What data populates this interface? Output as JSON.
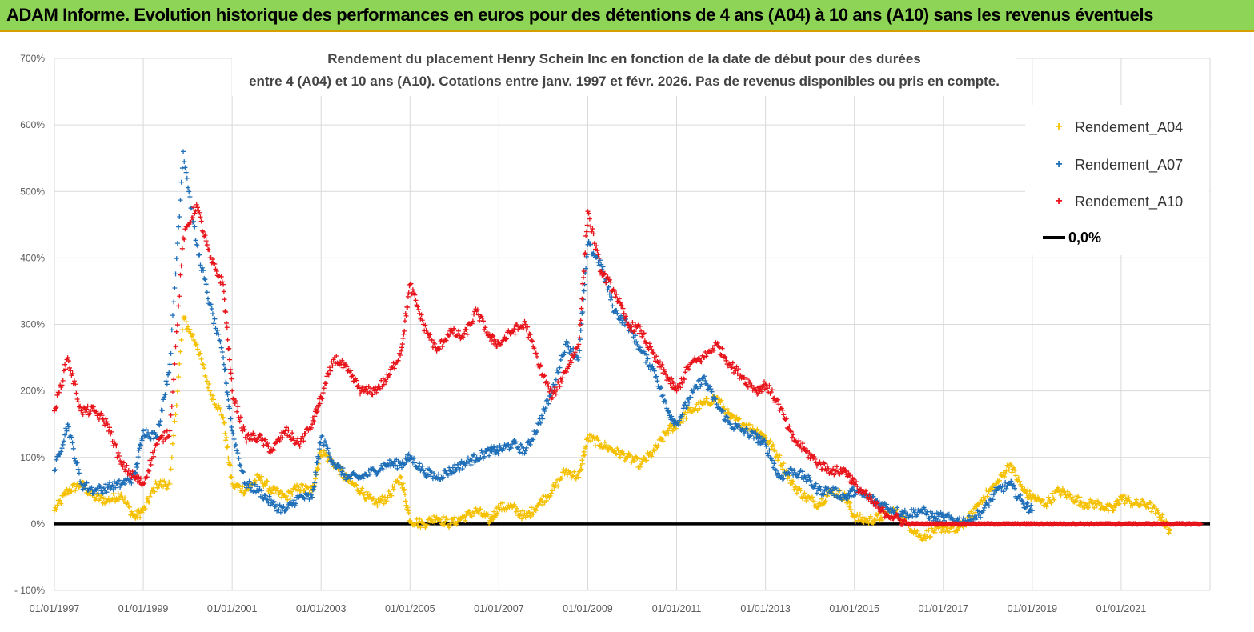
{
  "banner": {
    "title": "ADAM Informe. Evolution historique des performances en euros pour des détentions de 4 ans (A04) à 10 ans (A10) sans les revenus éventuels"
  },
  "chart_data": {
    "type": "scatter",
    "title_line1": "Rendement du placement Henry Schein Inc en fonction de la date de début pour des durées",
    "title_line2": "entre 4 (A04) et 10 ans (A10). Cotations entre janv. 1997 et févr. 2026. Pas de revenus disponibles ou pris en compte.",
    "xlabel": "",
    "ylabel": "",
    "x_range": [
      1997.0,
      2023.0
    ],
    "ylim": [
      -100,
      700
    ],
    "y_ticks": [
      -100,
      0,
      100,
      200,
      300,
      400,
      500,
      600,
      700
    ],
    "y_tick_labels": [
      "- 100%",
      "0%",
      "100%",
      "200%",
      "300%",
      "400%",
      "500%",
      "600%",
      "700%"
    ],
    "x_ticks": [
      1997,
      1999,
      2001,
      2003,
      2005,
      2007,
      2009,
      2011,
      2013,
      2015,
      2017,
      2019,
      2021
    ],
    "x_tick_labels": [
      "01/01/1997",
      "01/01/1999",
      "01/01/2001",
      "01/01/2003",
      "01/01/2005",
      "01/01/2007",
      "01/01/2009",
      "01/01/2011",
      "01/01/2013",
      "01/01/2015",
      "01/01/2017",
      "01/01/2019",
      "01/01/2021"
    ],
    "grid": true,
    "legend_position": "top-right",
    "colors": {
      "A04": "#f5c000",
      "A07": "#1f6fb8",
      "A10": "#e8141b",
      "zero": "#000000",
      "grid": "#d9d9d9",
      "axis_text": "#595959"
    },
    "series": [
      {
        "name": "Rendement_A04",
        "key": "A04",
        "marker": "+",
        "x": [
          1997.0,
          1997.3,
          1997.6,
          1997.9,
          1998.2,
          1998.5,
          1998.8,
          1999.0,
          1999.3,
          1999.6,
          1999.9,
          2000.2,
          2000.5,
          2000.8,
          2001.0,
          2001.3,
          2001.6,
          2001.9,
          2002.2,
          2002.5,
          2002.8,
          2003.0,
          2003.3,
          2003.6,
          2003.9,
          2004.2,
          2004.5,
          2004.8,
          2005.0,
          2005.3,
          2005.6,
          2005.9,
          2006.2,
          2006.5,
          2006.8,
          2007.0,
          2007.3,
          2007.6,
          2007.9,
          2008.2,
          2008.5,
          2008.8,
          2009.0,
          2009.3,
          2009.6,
          2009.9,
          2010.2,
          2010.5,
          2010.8,
          2011.0,
          2011.3,
          2011.6,
          2011.9,
          2012.2,
          2012.5,
          2012.8,
          2013.0,
          2013.3,
          2013.6,
          2013.9,
          2014.2,
          2014.5,
          2014.8,
          2015.0,
          2015.3,
          2015.6,
          2015.9,
          2016.2,
          2016.5,
          2016.8,
          2017.0,
          2017.3,
          2017.6,
          2017.9,
          2018.2,
          2018.5,
          2018.8,
          2019.0,
          2019.3,
          2019.6,
          2019.9,
          2020.2,
          2020.5,
          2020.8,
          2021.0,
          2021.3,
          2021.6,
          2021.9,
          2022.1
        ],
        "values": [
          20,
          50,
          60,
          40,
          35,
          45,
          10,
          20,
          60,
          60,
          310,
          270,
          200,
          160,
          60,
          50,
          70,
          50,
          40,
          55,
          50,
          110,
          90,
          65,
          50,
          30,
          40,
          70,
          5,
          0,
          10,
          0,
          10,
          20,
          5,
          25,
          25,
          10,
          30,
          50,
          80,
          70,
          130,
          120,
          110,
          100,
          90,
          110,
          140,
          150,
          170,
          180,
          190,
          160,
          150,
          140,
          130,
          100,
          60,
          40,
          30,
          50,
          40,
          10,
          5,
          10,
          20,
          0,
          -20,
          -10,
          -5,
          -10,
          10,
          40,
          60,
          90,
          50,
          40,
          30,
          50,
          40,
          30,
          30,
          20,
          40,
          30,
          30,
          10,
          -10
        ]
      },
      {
        "name": "Rendement_A07",
        "key": "A07",
        "marker": "+",
        "x": [
          1997.0,
          1997.3,
          1997.6,
          1997.9,
          1998.2,
          1998.5,
          1998.8,
          1999.0,
          1999.3,
          1999.6,
          1999.9,
          2000.2,
          2000.5,
          2000.8,
          2001.0,
          2001.3,
          2001.6,
          2001.9,
          2002.2,
          2002.5,
          2002.8,
          2003.0,
          2003.3,
          2003.6,
          2003.9,
          2004.2,
          2004.5,
          2004.8,
          2005.0,
          2005.3,
          2005.6,
          2005.9,
          2006.2,
          2006.5,
          2006.8,
          2007.0,
          2007.3,
          2007.6,
          2007.9,
          2008.2,
          2008.5,
          2008.8,
          2009.0,
          2009.3,
          2009.6,
          2009.9,
          2010.2,
          2010.5,
          2010.8,
          2011.0,
          2011.3,
          2011.6,
          2011.9,
          2012.2,
          2012.5,
          2012.8,
          2013.0,
          2013.3,
          2013.6,
          2013.9,
          2014.2,
          2014.5,
          2014.8,
          2015.0,
          2015.3,
          2015.6,
          2015.9,
          2016.2,
          2016.5,
          2016.8,
          2017.0,
          2017.3,
          2017.6,
          2017.9,
          2018.2,
          2018.5,
          2018.8,
          2019.0
        ],
        "values": [
          80,
          150,
          60,
          50,
          55,
          60,
          70,
          140,
          130,
          240,
          560,
          420,
          330,
          250,
          140,
          60,
          50,
          30,
          20,
          40,
          40,
          130,
          90,
          70,
          70,
          80,
          90,
          90,
          100,
          80,
          70,
          80,
          90,
          100,
          110,
          110,
          120,
          110,
          150,
          200,
          270,
          250,
          420,
          390,
          320,
          300,
          260,
          230,
          170,
          150,
          190,
          220,
          180,
          150,
          140,
          130,
          120,
          70,
          80,
          70,
          50,
          50,
          40,
          50,
          40,
          30,
          20,
          15,
          20,
          10,
          10,
          5,
          5,
          20,
          50,
          60,
          30,
          20
        ]
      },
      {
        "name": "Rendement_A10",
        "key": "A10",
        "marker": "+",
        "x": [
          1997.0,
          1997.3,
          1997.6,
          1997.9,
          1998.2,
          1998.5,
          1998.8,
          1999.0,
          1999.3,
          1999.6,
          1999.9,
          2000.2,
          2000.5,
          2000.8,
          2001.0,
          2001.3,
          2001.6,
          2001.9,
          2002.2,
          2002.5,
          2002.8,
          2003.0,
          2003.3,
          2003.6,
          2003.9,
          2004.2,
          2004.5,
          2004.8,
          2005.0,
          2005.3,
          2005.6,
          2005.9,
          2006.2,
          2006.5,
          2006.8,
          2007.0,
          2007.3,
          2007.6,
          2007.9,
          2008.2,
          2008.5,
          2008.8,
          2009.0,
          2009.3,
          2009.6,
          2009.9,
          2010.2,
          2010.5,
          2010.8,
          2011.0,
          2011.3,
          2011.6,
          2011.9,
          2012.2,
          2012.5,
          2012.8,
          2013.0,
          2013.3,
          2013.6,
          2013.9,
          2014.2,
          2014.5,
          2014.8,
          2015.0,
          2015.3,
          2015.6,
          2015.9,
          2016.2,
          2016.5,
          2016.8,
          2017.0,
          2017.3,
          2017.6,
          2017.9,
          2018.2,
          2018.5,
          2018.8,
          2019.0,
          2019.3,
          2019.6,
          2019.9,
          2020.2,
          2020.5,
          2020.8,
          2021.0,
          2021.3,
          2021.6,
          2021.9,
          2022.2,
          2022.5,
          2022.8
        ],
        "values": [
          170,
          250,
          170,
          170,
          150,
          90,
          70,
          60,
          120,
          140,
          430,
          480,
          400,
          360,
          200,
          130,
          130,
          110,
          140,
          120,
          150,
          190,
          250,
          230,
          200,
          200,
          220,
          260,
          360,
          300,
          260,
          290,
          280,
          320,
          280,
          270,
          290,
          300,
          240,
          190,
          230,
          270,
          470,
          380,
          350,
          300,
          290,
          250,
          220,
          200,
          240,
          250,
          270,
          240,
          220,
          200,
          210,
          180,
          130,
          110,
          90,
          80,
          80,
          60,
          40,
          20,
          10,
          0,
          0,
          0,
          0,
          0,
          0,
          0,
          0,
          0,
          0,
          0,
          0,
          0,
          0,
          0,
          0,
          0,
          0,
          0,
          0,
          0,
          0,
          0,
          0
        ]
      }
    ],
    "zero_line": {
      "name": "0,0%",
      "value": 0
    }
  },
  "legend": {
    "items": [
      {
        "label": "Rendement_A04",
        "marker": "+",
        "key": "A04"
      },
      {
        "label": "Rendement_A07",
        "marker": "+",
        "key": "A07"
      },
      {
        "label": "Rendement_A10",
        "marker": "+",
        "key": "A10"
      },
      {
        "label": "0,0%",
        "key": "zero"
      }
    ]
  }
}
